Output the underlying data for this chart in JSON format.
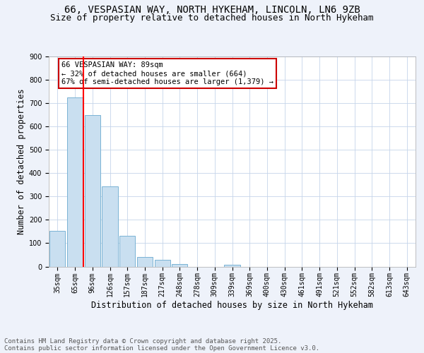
{
  "title1": "66, VESPASIAN WAY, NORTH HYKEHAM, LINCOLN, LN6 9ZB",
  "title2": "Size of property relative to detached houses in North Hykeham",
  "xlabel": "Distribution of detached houses by size in North Hykeham",
  "ylabel": "Number of detached properties",
  "footer1": "Contains HM Land Registry data © Crown copyright and database right 2025.",
  "footer2": "Contains public sector information licensed under the Open Government Licence v3.0.",
  "annotation_title": "66 VESPASIAN WAY: 89sqm",
  "annotation_line2": "← 32% of detached houses are smaller (664)",
  "annotation_line3": "67% of semi-detached houses are larger (1,379) →",
  "bar_color": "#c9dff0",
  "bar_edge_color": "#7ab3d4",
  "vline_color": "red",
  "vline_x": 1.5,
  "categories": [
    "35sqm",
    "65sqm",
    "96sqm",
    "126sqm",
    "157sqm",
    "187sqm",
    "217sqm",
    "248sqm",
    "278sqm",
    "309sqm",
    "339sqm",
    "369sqm",
    "400sqm",
    "430sqm",
    "461sqm",
    "491sqm",
    "521sqm",
    "552sqm",
    "582sqm",
    "613sqm",
    "643sqm"
  ],
  "values": [
    153,
    724,
    648,
    343,
    133,
    42,
    30,
    12,
    0,
    0,
    7,
    0,
    0,
    0,
    0,
    0,
    0,
    0,
    0,
    0,
    0
  ],
  "ylim": [
    0,
    900
  ],
  "yticks": [
    0,
    100,
    200,
    300,
    400,
    500,
    600,
    700,
    800,
    900
  ],
  "background_color": "#eef2fa",
  "plot_background": "#ffffff",
  "grid_color": "#c5d5ea",
  "annotation_box_color": "#ffffff",
  "annotation_box_edge": "#cc0000",
  "title1_fontsize": 10,
  "title2_fontsize": 9,
  "tick_fontsize": 7,
  "axis_label_fontsize": 8.5,
  "footer_fontsize": 6.5,
  "annotation_fontsize": 7.5
}
